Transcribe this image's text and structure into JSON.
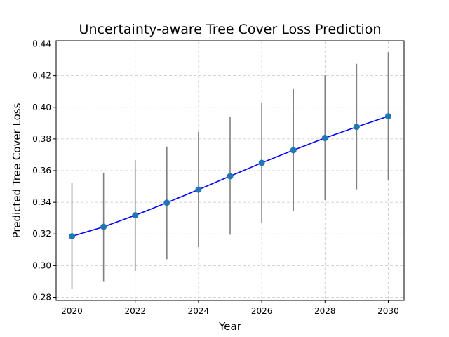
{
  "chart_data": {
    "type": "line",
    "title": "Uncertainty-aware Tree Cover Loss Prediction",
    "xlabel": "Year",
    "ylabel": "Predicted Tree Cover Loss",
    "xlim": [
      2019.5,
      2030.5
    ],
    "ylim": [
      0.278,
      0.442
    ],
    "x_ticks": [
      2020,
      2022,
      2024,
      2026,
      2028,
      2030
    ],
    "y_ticks": [
      0.28,
      0.3,
      0.32,
      0.34,
      0.36,
      0.38,
      0.4,
      0.42,
      0.44
    ],
    "grid": true,
    "series": [
      {
        "x": [
          2020,
          2021,
          2022,
          2023,
          2024,
          2025,
          2026,
          2027,
          2028,
          2029,
          2030
        ],
        "values": [
          0.3185,
          0.3245,
          0.3318,
          0.3397,
          0.348,
          0.3565,
          0.3649,
          0.3729,
          0.3806,
          0.3876,
          0.3943
        ],
        "lower": [
          0.2853,
          0.2902,
          0.2966,
          0.304,
          0.3117,
          0.3195,
          0.3271,
          0.3343,
          0.3414,
          0.3482,
          0.3538
        ],
        "upper": [
          0.352,
          0.3587,
          0.3666,
          0.3752,
          0.3844,
          0.3938,
          0.4026,
          0.4115,
          0.4202,
          0.4275,
          0.4348
        ],
        "line_color": "#0000ff",
        "marker_color": "#1f77b4",
        "error_color": "#808080"
      }
    ]
  }
}
